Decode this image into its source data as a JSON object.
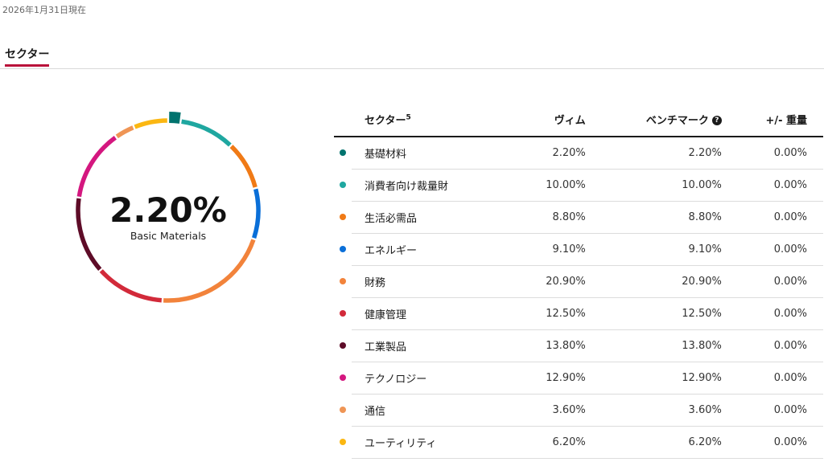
{
  "as_of": "2026年1月31日現在",
  "tab": {
    "label": "セクター"
  },
  "center": {
    "value": "2.20%",
    "label": "Basic Materials"
  },
  "table": {
    "headers": {
      "sector": "セクター",
      "sector_sup": "5",
      "vim": "ヴィム",
      "benchmark": "ベンチマーク",
      "help": "?",
      "diff": "+/- 重量"
    }
  },
  "chart_data": {
    "type": "pie",
    "categories": [
      "基礎材料",
      "消費者向け裁量財",
      "生活必需品",
      "エネルギー",
      "財務",
      "健康管理",
      "工業製品",
      "テクノロジー",
      "通信",
      "ユーティリティ"
    ],
    "values": [
      2.2,
      10.0,
      8.8,
      9.1,
      20.9,
      12.5,
      13.8,
      12.9,
      3.6,
      6.2
    ],
    "benchmark": [
      2.2,
      10.0,
      8.8,
      9.1,
      20.9,
      12.5,
      13.8,
      12.9,
      3.6,
      6.2
    ],
    "diff": [
      0.0,
      0.0,
      0.0,
      0.0,
      0.0,
      0.0,
      0.0,
      0.0,
      0.0,
      0.0
    ],
    "value_labels": [
      "2.20%",
      "10.00%",
      "8.80%",
      "9.10%",
      "20.90%",
      "12.50%",
      "13.80%",
      "12.90%",
      "3.60%",
      "6.20%"
    ],
    "benchmark_labels": [
      "2.20%",
      "10.00%",
      "8.80%",
      "9.10%",
      "20.90%",
      "12.50%",
      "13.80%",
      "12.90%",
      "3.60%",
      "6.20%"
    ],
    "diff_labels": [
      "0.00%",
      "0.00%",
      "0.00%",
      "0.00%",
      "0.00%",
      "0.00%",
      "0.00%",
      "0.00%",
      "0.00%",
      "0.00%"
    ],
    "colors": [
      "#00736e",
      "#1fa7a0",
      "#f07a16",
      "#0a6fd8",
      "#f2833b",
      "#d22a3a",
      "#5e0c28",
      "#d4177f",
      "#ef9555",
      "#fbb712"
    ],
    "highlighted": "基礎材料"
  }
}
